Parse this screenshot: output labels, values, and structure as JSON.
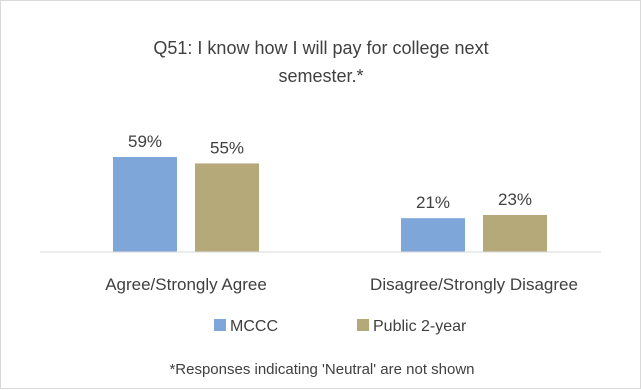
{
  "chart_data": {
    "type": "bar",
    "title_lines": [
      "Q51: I know how I will pay for college next",
      "semester.*"
    ],
    "categories": [
      "Agree/Strongly Agree",
      "Disagree/Strongly Disagree"
    ],
    "series": [
      {
        "name": "MCCC",
        "values": [
          59,
          21
        ],
        "labels": [
          "59%",
          "21%"
        ],
        "color": "#7ea6d8"
      },
      {
        "name": "Public 2-year",
        "values": [
          55,
          23
        ],
        "labels": [
          "55%",
          "23%"
        ],
        "color": "#b5a97a"
      }
    ],
    "ylim": [
      0,
      100
    ],
    "grid": false,
    "legend_position": "bottom",
    "note": "*Responses indicating 'Neutral' are not shown"
  }
}
